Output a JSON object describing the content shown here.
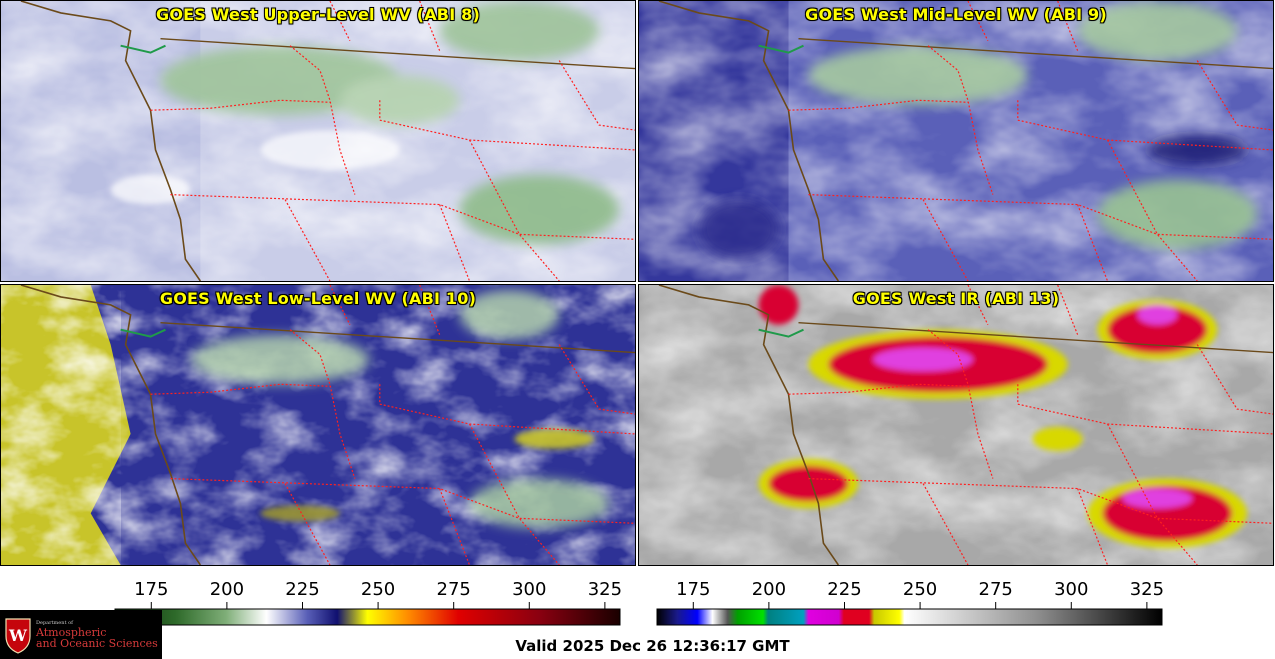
{
  "panels": [
    {
      "title": "GOES West Upper-Level WV (ABI 8)",
      "colormap": "wv"
    },
    {
      "title": "GOES West Mid-Level WV (ABI 9)",
      "colormap": "wv"
    },
    {
      "title": "GOES West Low-Level WV (ABI 10)",
      "colormap": "wv"
    },
    {
      "title": "GOES West IR (ABI 13)",
      "colormap": "ir"
    }
  ],
  "colorbar_wv": {
    "ticks": [
      "175",
      "200",
      "225",
      "250",
      "275",
      "300",
      "325"
    ],
    "range": [
      163,
      330
    ]
  },
  "colorbar_ir": {
    "ticks": [
      "175",
      "200",
      "225",
      "250",
      "275",
      "300",
      "325"
    ],
    "range": [
      163,
      330
    ]
  },
  "logo": {
    "dept_line": "Department of",
    "line1": "Atmospheric",
    "line2": "and Oceanic Sciences"
  },
  "valid_time": "Valid 2025 Dec 26 12:36:17 GMT",
  "colors": {
    "title_text": "#ffff00",
    "state_border": "#ff2020",
    "coastline": "#6b4a1a"
  }
}
